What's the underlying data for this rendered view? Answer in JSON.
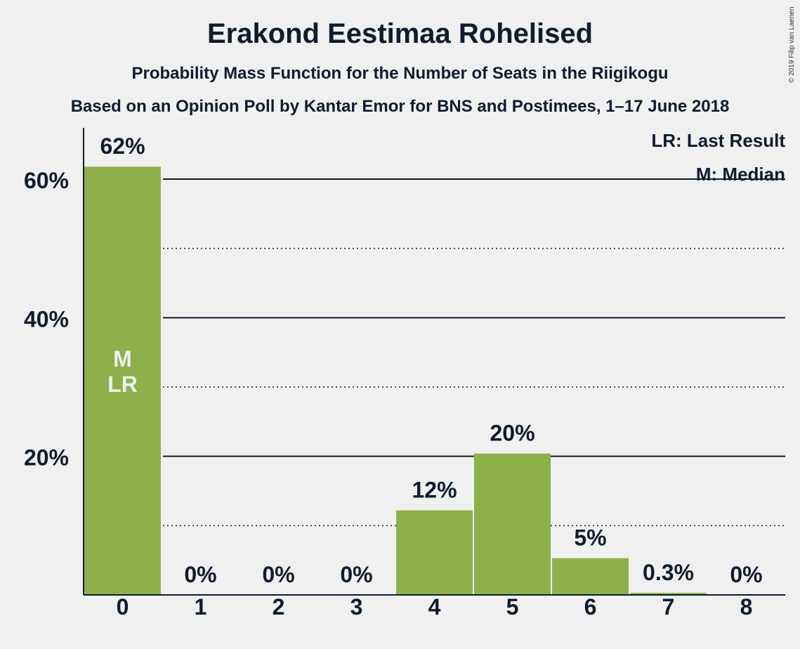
{
  "title": "Erakond Eestimaa Rohelised",
  "subtitle": "Probability Mass Function for the Number of Seats in the Riigikogu",
  "subtitle2": "Based on an Opinion Poll by Kantar Emor for BNS and Postimees, 1–17 June 2018",
  "copyright": "© 2019 Filip van Laenen",
  "legend": {
    "last_result": "LR: Last Result",
    "median": "M: Median"
  },
  "colors": {
    "bar": "#8db04a",
    "text": "#0f1c2e",
    "background": "#f0f0f0",
    "bar_label_inside": "#f0f0f0"
  },
  "chart_data": {
    "type": "bar",
    "categories": [
      "0",
      "1",
      "2",
      "3",
      "4",
      "5",
      "6",
      "7",
      "8"
    ],
    "values": [
      61.8,
      0,
      0,
      0,
      12.2,
      20.4,
      5.3,
      0.3,
      0
    ],
    "labels": [
      "62%",
      "0%",
      "0%",
      "0%",
      "12%",
      "20%",
      "5%",
      "0.3%",
      "0%"
    ],
    "ylim": [
      0,
      67
    ],
    "yticks": [
      20,
      40,
      60
    ],
    "ytick_labels": [
      "20%",
      "40%",
      "60%"
    ],
    "minor_gridlines": [
      10,
      30,
      50
    ],
    "markers": {
      "0": [
        "M",
        "LR"
      ]
    },
    "legend_placement": "top-right"
  }
}
